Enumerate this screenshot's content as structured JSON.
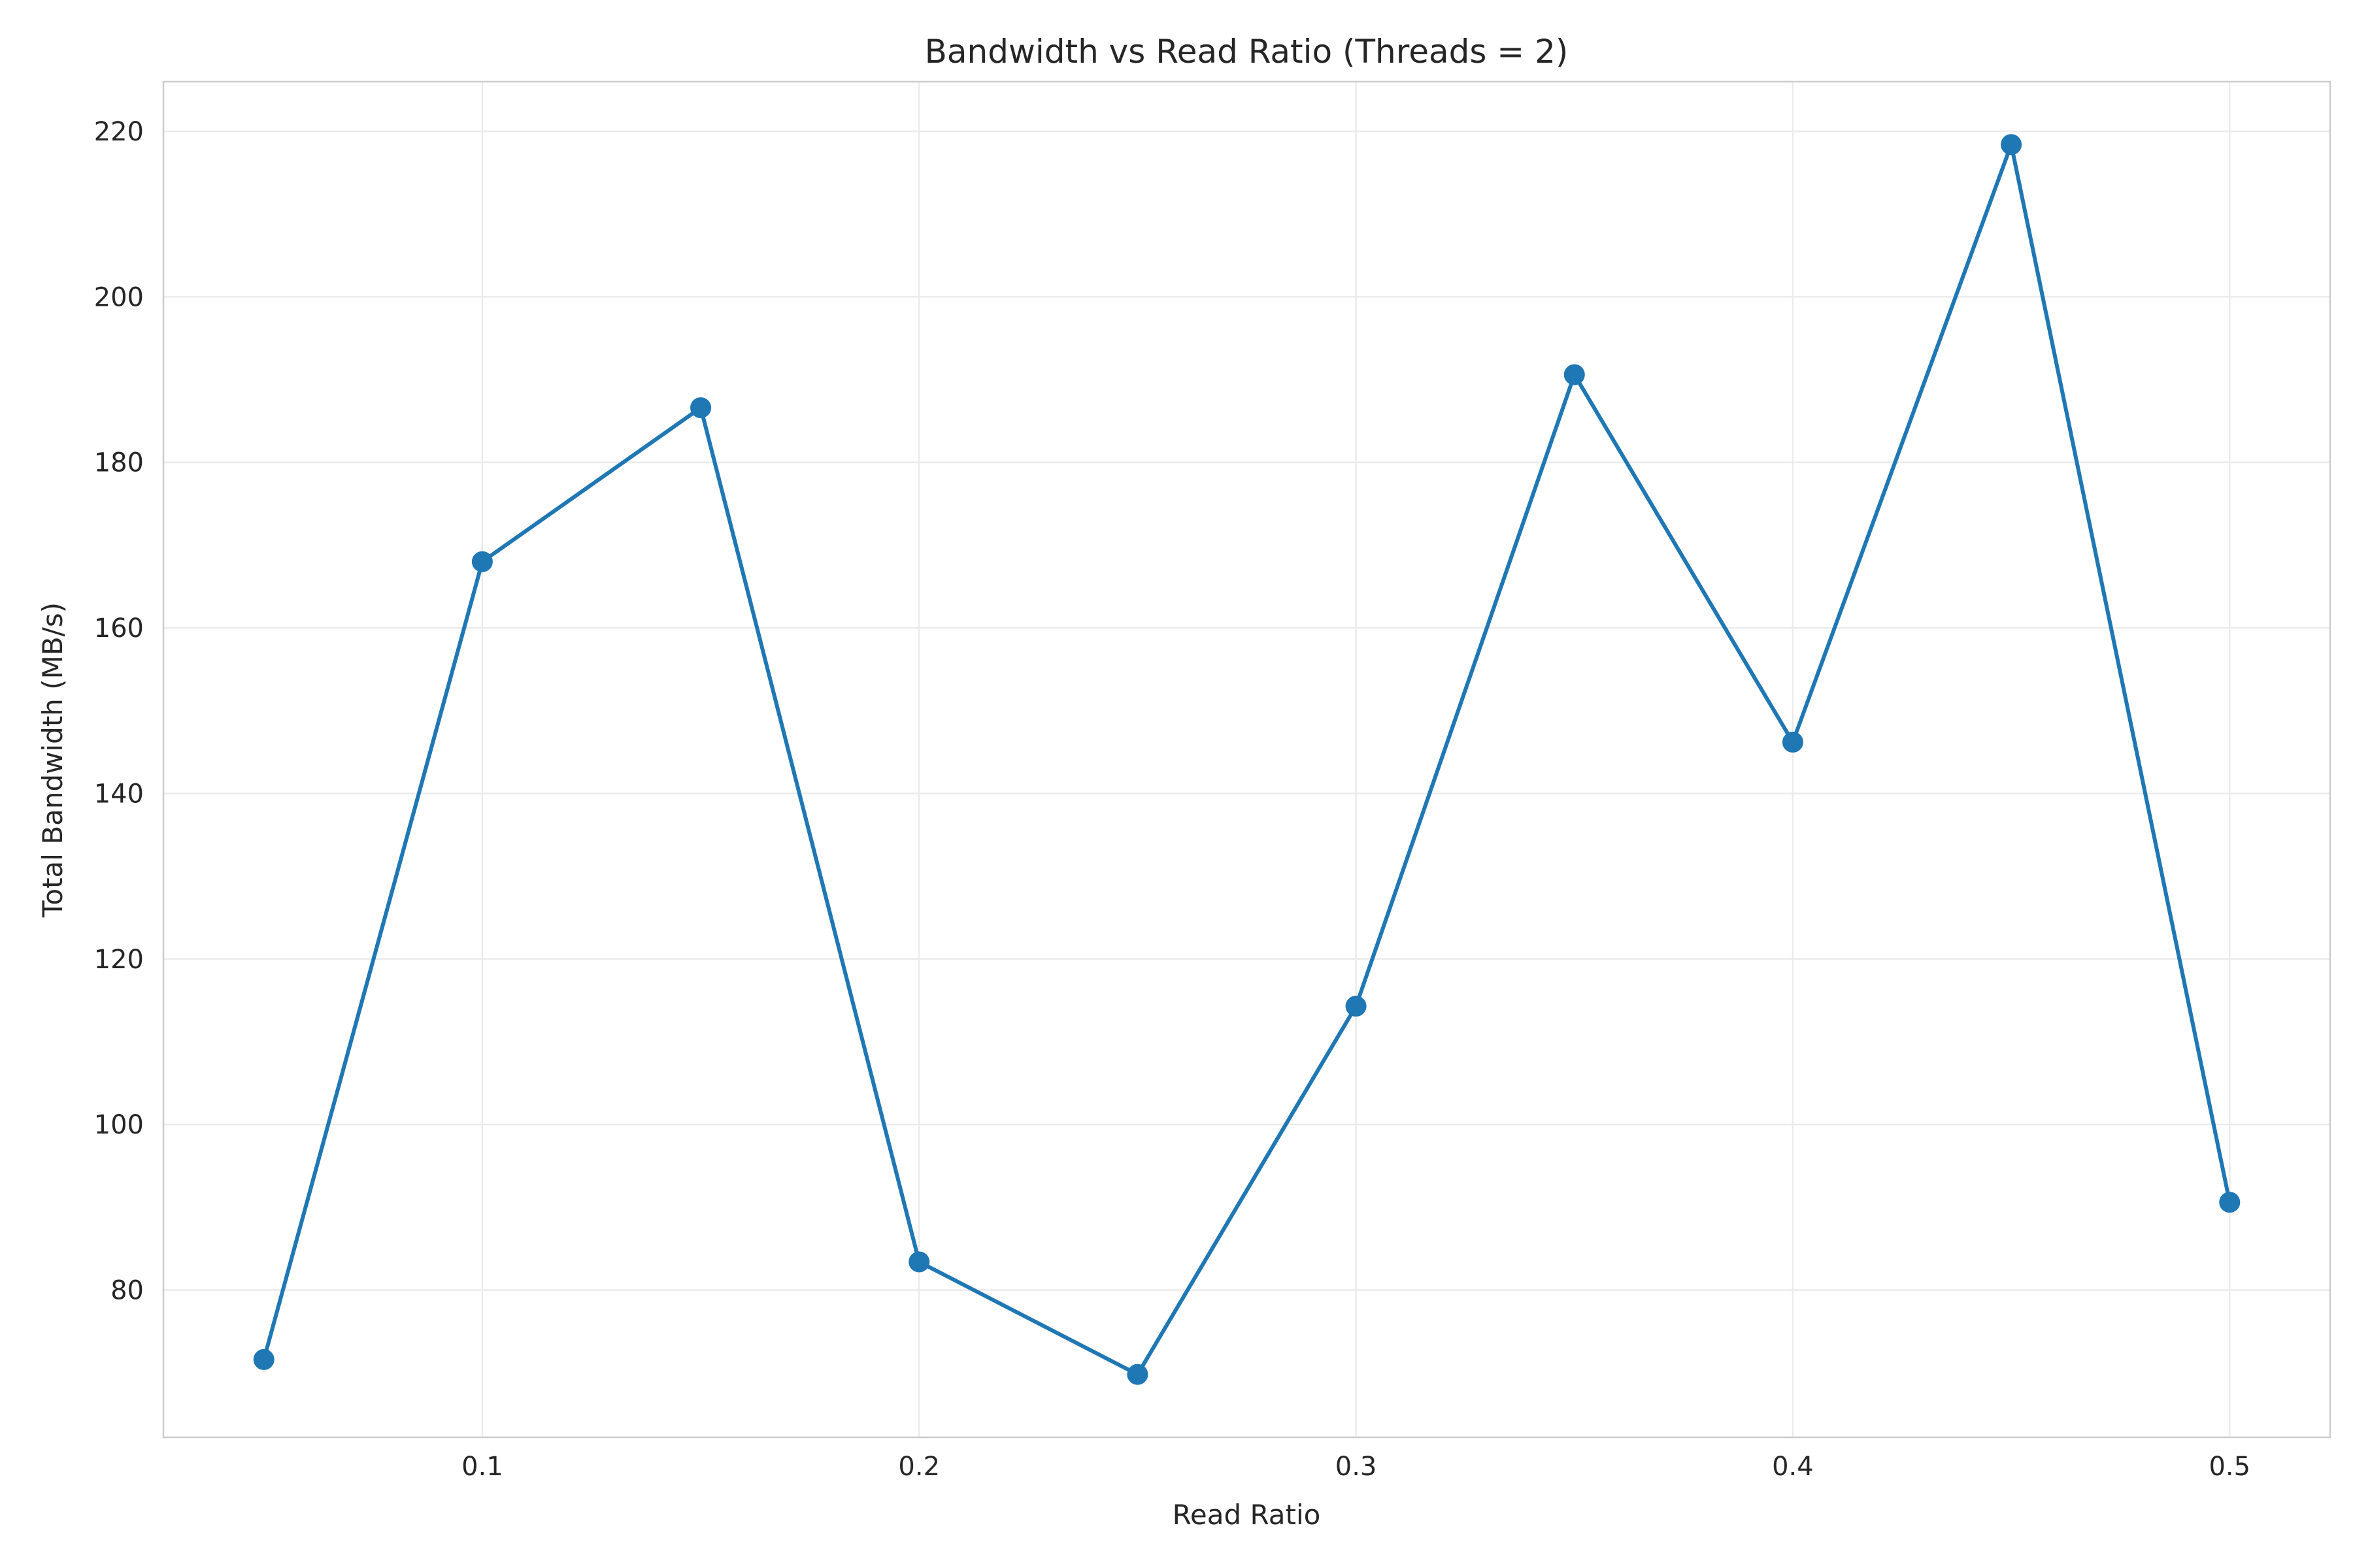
{
  "chart_data": {
    "type": "line",
    "title": "Bandwidth vs Read Ratio (Threads = 2)",
    "xlabel": "Read Ratio",
    "ylabel": "Total Bandwidth (MB/s)",
    "xlim": [
      0.027,
      0.523
    ],
    "ylim": [
      62.2,
      226.0
    ],
    "xticks": [
      0.1,
      0.2,
      0.3,
      0.4,
      0.5
    ],
    "xtick_labels": [
      "0.1",
      "0.2",
      "0.3",
      "0.4",
      "0.5"
    ],
    "yticks": [
      80,
      100,
      120,
      140,
      160,
      180,
      200,
      220
    ],
    "ytick_labels": [
      "80",
      "100",
      "120",
      "140",
      "160",
      "180",
      "200",
      "220"
    ],
    "grid": true,
    "legend": false,
    "series": [
      {
        "color": "#1f77b4",
        "marker": "circle",
        "x": [
          0.05,
          0.1,
          0.15,
          0.2,
          0.25,
          0.3,
          0.35,
          0.4,
          0.45,
          0.5
        ],
        "y": [
          71.6,
          168.0,
          186.6,
          83.4,
          69.8,
          114.3,
          190.6,
          146.2,
          218.4,
          90.6
        ]
      }
    ]
  }
}
